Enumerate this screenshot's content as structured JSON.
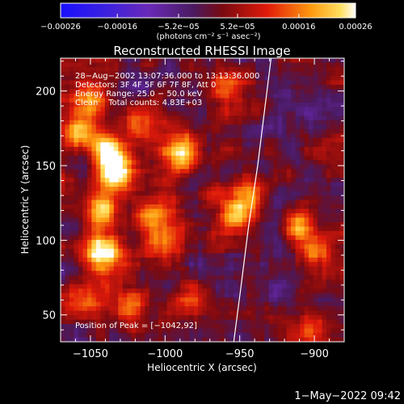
{
  "chart_data": {
    "type": "heatmap",
    "title": "Reconstructed RHESSI Image",
    "xlabel": "Heliocentric X (arcsec)",
    "ylabel": "Heliocentric Y (arcsec)",
    "xlim": [
      -1070,
      -880
    ],
    "ylim": [
      32,
      222
    ],
    "x_ticks": [
      -1050,
      -1000,
      -950,
      -900
    ],
    "x_tick_labels": [
      "−1050",
      "−1000",
      "−950",
      "−900"
    ],
    "y_ticks": [
      50,
      100,
      150,
      200
    ],
    "y_tick_labels": [
      "50",
      "100",
      "150",
      "200"
    ],
    "colorbar": {
      "range": [
        -0.00026,
        0.00026
      ],
      "ticks": [
        -0.00026,
        -0.00016,
        -5.2e-05,
        5.2e-05,
        0.00016,
        0.00026
      ],
      "tick_labels": [
        "−0.00026",
        "−0.00016",
        "−5.2e−05",
        "5.2e−05",
        "0.00016",
        "0.00026"
      ],
      "units": "(photons cm⁻² s⁻¹ asec⁻²)",
      "colormap": "blue-purple-red-orange-yellow-white"
    },
    "info_lines": [
      "28−Aug−2002 13:07:36.000 to 13:13:36.000",
      "Detectors: 3F 4F 5F 6F 7F 8F, Att 0",
      "Energy Range: 25.0 − 50.0 keV",
      "Clean    Total counts: 4.83E+03"
    ],
    "peak_label": "Position of Peak = [−1042,92]",
    "limb_curve": {
      "x": [
        -954,
        -949,
        -944,
        -938,
        -933,
        -929
      ],
      "y": [
        32,
        70,
        110,
        150,
        190,
        222
      ]
    },
    "bright_sources": [
      {
        "x": -1040,
        "y": 160,
        "intensity": 0.00026
      },
      {
        "x": -1030,
        "y": 145,
        "intensity": 0.00024
      },
      {
        "x": -1045,
        "y": 120,
        "intensity": 0.00022
      },
      {
        "x": -1042,
        "y": 92,
        "intensity": 0.00026
      },
      {
        "x": -990,
        "y": 158,
        "intensity": 0.00024
      },
      {
        "x": -1050,
        "y": 195,
        "intensity": 0.0002
      },
      {
        "x": -1060,
        "y": 175,
        "intensity": 0.00018
      },
      {
        "x": -955,
        "y": 115,
        "intensity": 0.00022
      },
      {
        "x": -945,
        "y": 130,
        "intensity": 0.00018
      },
      {
        "x": -1000,
        "y": 100,
        "intensity": 0.00016
      },
      {
        "x": -985,
        "y": 60,
        "intensity": 0.00015
      },
      {
        "x": -1025,
        "y": 55,
        "intensity": 0.00015
      },
      {
        "x": -1055,
        "y": 60,
        "intensity": 0.00014
      },
      {
        "x": -910,
        "y": 110,
        "intensity": 0.00016
      },
      {
        "x": -900,
        "y": 95,
        "intensity": 0.00014
      },
      {
        "x": -905,
        "y": 40,
        "intensity": 0.00014
      },
      {
        "x": -960,
        "y": 205,
        "intensity": 0.00014
      },
      {
        "x": -1005,
        "y": 120,
        "intensity": 0.00018
      },
      {
        "x": -1015,
        "y": 180,
        "intensity": 0.00016
      }
    ]
  },
  "footer": {
    "timestamp": "1−May−2022 09:42"
  },
  "colors": {
    "background": "#000000",
    "foreground": "#ffffff",
    "limb": "#ffffff"
  }
}
